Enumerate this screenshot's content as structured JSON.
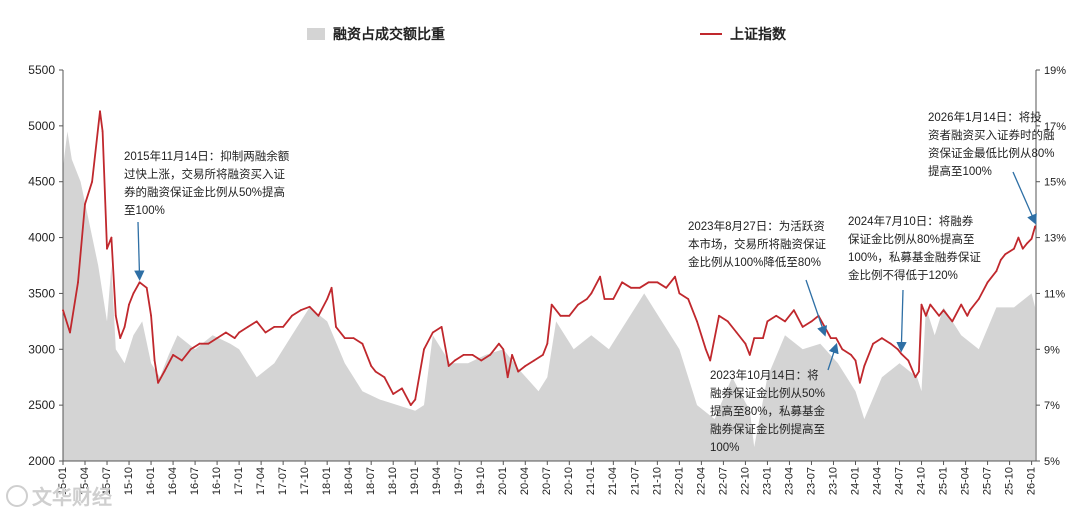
{
  "chart_data": {
    "type": "line",
    "legend": [
      {
        "name": "融资占成交额比重",
        "style": "area",
        "color": "#d4d4d4",
        "axis": "right"
      },
      {
        "name": "上证指数",
        "style": "line",
        "color": "#c0282d",
        "axis": "left"
      }
    ],
    "y_left": {
      "ticks": [
        2000,
        2500,
        3000,
        3500,
        4000,
        4500,
        5000,
        5500
      ],
      "ylim": [
        2000,
        5500
      ]
    },
    "y_right": {
      "ticks": [
        "5%",
        "7%",
        "9%",
        "11%",
        "13%",
        "15%",
        "17%",
        "19%"
      ],
      "ylim": [
        5,
        19
      ]
    },
    "x_ticks": [
      "15-01",
      "15-04",
      "15-07",
      "15-10",
      "16-01",
      "16-04",
      "16-07",
      "16-10",
      "17-01",
      "17-04",
      "17-07",
      "17-10",
      "18-01",
      "18-04",
      "18-07",
      "18-10",
      "19-01",
      "19-04",
      "19-07",
      "19-10",
      "20-01",
      "20-04",
      "20-07",
      "20-10",
      "21-01",
      "21-04",
      "21-07",
      "21-10",
      "22-01",
      "22-04",
      "22-07",
      "22-10",
      "23-01",
      "23-04",
      "23-07",
      "23-10",
      "24-01",
      "24-04",
      "24-07",
      "24-10",
      "25-01",
      "25-04",
      "25-07",
      "25-10",
      "26-01"
    ],
    "x_range": [
      2015.0,
      2026.05
    ],
    "index_series": {
      "name": "上证指数",
      "x": [
        2015.0,
        2015.08,
        2015.17,
        2015.25,
        2015.33,
        2015.42,
        2015.45,
        2015.5,
        2015.55,
        2015.6,
        2015.65,
        2015.7,
        2015.75,
        2015.8,
        2015.87,
        2015.95,
        2016.0,
        2016.04,
        2016.08,
        2016.15,
        2016.25,
        2016.35,
        2016.45,
        2016.55,
        2016.65,
        2016.75,
        2016.85,
        2016.95,
        2017.0,
        2017.1,
        2017.2,
        2017.3,
        2017.4,
        2017.5,
        2017.6,
        2017.7,
        2017.8,
        2017.9,
        2018.0,
        2018.05,
        2018.1,
        2018.2,
        2018.3,
        2018.4,
        2018.5,
        2018.55,
        2018.65,
        2018.75,
        2018.85,
        2018.95,
        2019.0,
        2019.1,
        2019.2,
        2019.3,
        2019.38,
        2019.45,
        2019.55,
        2019.65,
        2019.75,
        2019.85,
        2019.95,
        2020.0,
        2020.05,
        2020.1,
        2020.17,
        2020.25,
        2020.35,
        2020.45,
        2020.5,
        2020.55,
        2020.65,
        2020.75,
        2020.85,
        2020.95,
        2021.0,
        2021.1,
        2021.15,
        2021.25,
        2021.35,
        2021.45,
        2021.55,
        2021.65,
        2021.75,
        2021.85,
        2021.95,
        2022.0,
        2022.1,
        2022.2,
        2022.3,
        2022.35,
        2022.45,
        2022.55,
        2022.65,
        2022.75,
        2022.8,
        2022.85,
        2022.95,
        2023.0,
        2023.1,
        2023.2,
        2023.3,
        2023.4,
        2023.5,
        2023.58,
        2023.65,
        2023.72,
        2023.78,
        2023.85,
        2023.95,
        2024.0,
        2024.05,
        2024.1,
        2024.2,
        2024.3,
        2024.4,
        2024.48,
        2024.52,
        2024.6,
        2024.68,
        2024.72,
        2024.75,
        2024.8,
        2024.85,
        2024.95,
        2025.0,
        2025.1,
        2025.2,
        2025.27,
        2025.3,
        2025.4,
        2025.5,
        2025.6,
        2025.65,
        2025.7,
        2025.8,
        2025.85,
        2025.9,
        2025.95,
        2026.0,
        2026.04
      ],
      "values": [
        3350,
        3150,
        3600,
        4300,
        4500,
        5130,
        4950,
        3900,
        4000,
        3300,
        3100,
        3200,
        3400,
        3500,
        3600,
        3550,
        3300,
        2900,
        2700,
        2800,
        2950,
        2900,
        3000,
        3050,
        3050,
        3100,
        3150,
        3100,
        3150,
        3200,
        3250,
        3150,
        3200,
        3200,
        3300,
        3350,
        3380,
        3300,
        3450,
        3550,
        3200,
        3100,
        3100,
        3050,
        2850,
        2800,
        2750,
        2600,
        2650,
        2500,
        2550,
        3000,
        3150,
        3200,
        2850,
        2900,
        2950,
        2950,
        2900,
        2950,
        3050,
        3000,
        2750,
        2950,
        2800,
        2850,
        2900,
        2950,
        3050,
        3400,
        3300,
        3300,
        3400,
        3450,
        3500,
        3650,
        3450,
        3450,
        3600,
        3550,
        3550,
        3600,
        3600,
        3550,
        3650,
        3500,
        3450,
        3250,
        3000,
        2900,
        3300,
        3250,
        3150,
        3050,
        2950,
        3100,
        3100,
        3250,
        3300,
        3250,
        3350,
        3200,
        3250,
        3300,
        3200,
        3100,
        3100,
        3000,
        2950,
        2900,
        2700,
        2850,
        3050,
        3100,
        3050,
        3000,
        2960,
        2900,
        2750,
        2800,
        3400,
        3300,
        3400,
        3300,
        3350,
        3250,
        3400,
        3300,
        3350,
        3450,
        3600,
        3700,
        3800,
        3850,
        3900,
        4000,
        3900,
        3950,
        3990,
        4100
      ]
    },
    "ratio_series": {
      "name": "融资占成交额比重",
      "unit": "%",
      "x": [
        2015.0,
        2015.05,
        2015.1,
        2015.2,
        2015.3,
        2015.4,
        2015.5,
        2015.55,
        2015.6,
        2015.7,
        2015.8,
        2015.9,
        2016.0,
        2016.1,
        2016.2,
        2016.3,
        2016.5,
        2016.7,
        2016.9,
        2017.0,
        2017.2,
        2017.4,
        2017.6,
        2017.8,
        2018.0,
        2018.2,
        2018.4,
        2018.6,
        2018.8,
        2019.0,
        2019.1,
        2019.2,
        2019.4,
        2019.6,
        2019.8,
        2020.0,
        2020.2,
        2020.4,
        2020.5,
        2020.6,
        2020.8,
        2021.0,
        2021.2,
        2021.4,
        2021.6,
        2021.8,
        2022.0,
        2022.2,
        2022.4,
        2022.6,
        2022.8,
        2022.85,
        2023.0,
        2023.2,
        2023.4,
        2023.6,
        2023.8,
        2024.0,
        2024.1,
        2024.3,
        2024.5,
        2024.7,
        2024.75,
        2024.8,
        2024.9,
        2025.0,
        2025.2,
        2025.4,
        2025.6,
        2025.8,
        2026.0,
        2026.04
      ],
      "values": [
        15.5,
        16.8,
        15.8,
        15.0,
        13.5,
        12.0,
        10.0,
        12.0,
        9.0,
        8.5,
        9.5,
        10.0,
        8.5,
        8.0,
        8.8,
        9.5,
        9.0,
        9.5,
        9.2,
        9.0,
        8.0,
        8.5,
        9.5,
        10.5,
        10.0,
        8.5,
        7.5,
        7.2,
        7.0,
        6.8,
        7.0,
        9.5,
        8.5,
        8.5,
        8.8,
        9.0,
        8.2,
        7.5,
        8.0,
        10.0,
        9.0,
        9.5,
        9.0,
        10.0,
        11.0,
        10.0,
        9.0,
        7.0,
        6.5,
        8.0,
        6.8,
        5.5,
        8.0,
        9.5,
        9.0,
        9.2,
        8.5,
        7.5,
        6.5,
        8.0,
        8.5,
        8.0,
        7.5,
        10.5,
        9.5,
        10.5,
        9.5,
        9.0,
        10.5,
        10.5,
        11.0,
        10.5
      ]
    },
    "annotations": [
      {
        "text": "2015年11月14日：抑制两融余额\n过快上涨，交易所将融资买入证\n券的融资保证金比例从50%提高\n至100%",
        "target_x": 2015.87,
        "target_y": 3600
      },
      {
        "text": "2023年8月27日：为活跃资\n本市场，交易所将融资保证\n金比例从100%降低至80%",
        "target_x": 2023.65,
        "target_y": 3100
      },
      {
        "text": "2023年10月14日：将\n融券保证金比例从50%\n提高至80%，私募基金\n融券保证金比例提高至\n100%",
        "target_x": 2023.78,
        "target_y": 3000
      },
      {
        "text": "2024年7月10日：将融券\n保证金比例从80%提高至\n100%，私募基金融券保证\n金比例不得低于120%",
        "target_x": 2024.52,
        "target_y": 2960
      },
      {
        "text": "2026年1月14日：将投\n资者融资买入证券时的融\n资保证金最低比例从80%\n提高至100%",
        "target_x": 2026.04,
        "target_y": 4100
      }
    ]
  },
  "watermark": "文华财经"
}
